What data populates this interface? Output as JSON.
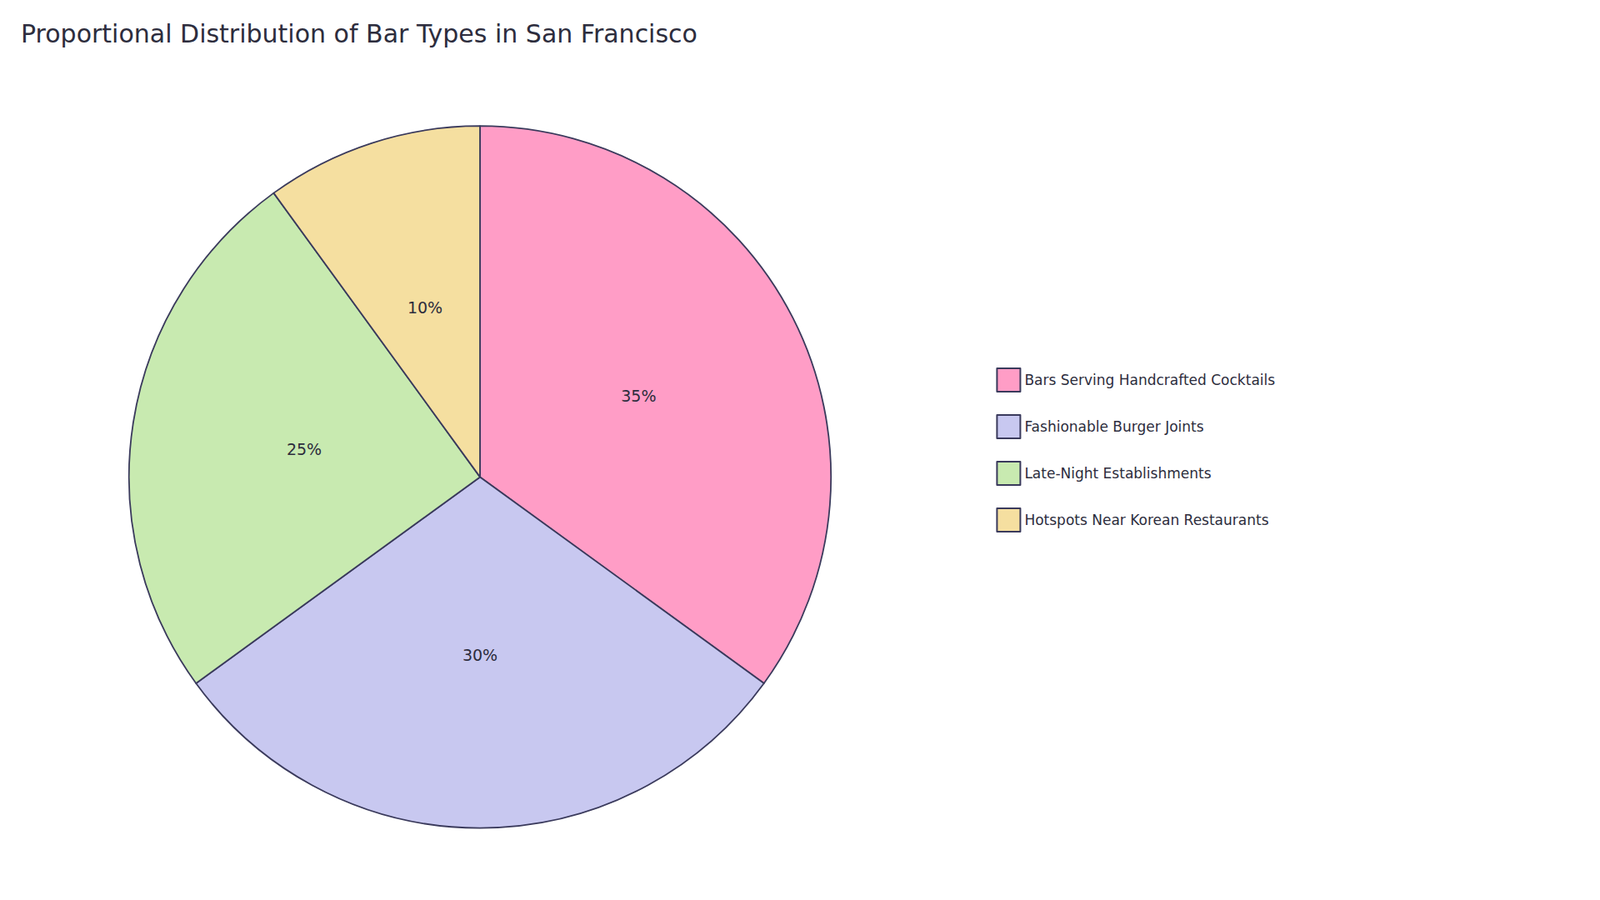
{
  "chart_data": {
    "type": "pie",
    "title": "Proportional Distribution of Bar Types in San Francisco",
    "categories": [
      "Bars Serving Handcrafted Cocktails",
      "Fashionable Burger Joints",
      "Late-Night Establishments",
      "Hotspots Near Korean Restaurants"
    ],
    "values": [
      35,
      30,
      25,
      10
    ],
    "value_labels": [
      "35%",
      "30%",
      "25%",
      "10%"
    ],
    "colors": [
      "#FF9DC6",
      "#C8C8F0",
      "#C8EAB0",
      "#F5DFA0"
    ],
    "data_labels": true,
    "legend": "right"
  }
}
